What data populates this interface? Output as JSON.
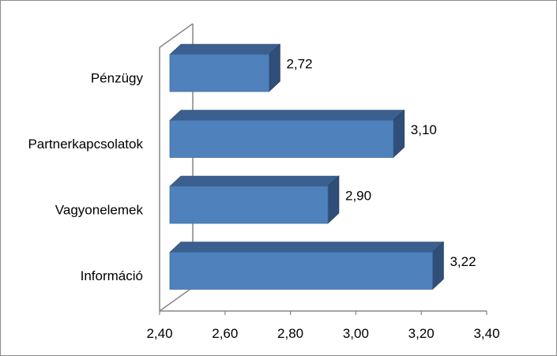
{
  "chart_data": {
    "type": "bar",
    "orientation": "horizontal",
    "three_d": true,
    "categories": [
      "Pénzügy",
      "Partnerkapcsolatok",
      "Vagyonelemek",
      "Információ"
    ],
    "values": [
      2.72,
      3.1,
      2.9,
      3.22
    ],
    "value_labels": [
      "2,72",
      "3,10",
      "2,90",
      "3,22"
    ],
    "xlim": [
      2.4,
      3.4
    ],
    "x_ticks": [
      2.4,
      2.6,
      2.8,
      3.0,
      3.2,
      3.4
    ],
    "x_tick_labels": [
      "2,40",
      "2,60",
      "2,80",
      "3,00",
      "3,20",
      "3,40"
    ],
    "title": "",
    "xlabel": "",
    "ylabel": "",
    "grid": false,
    "legend": "none",
    "colors": {
      "bar_front": "#4f81bd",
      "bar_top": "#3b5f8e",
      "bar_side": "#2f4f78",
      "axis": "#868686"
    }
  }
}
